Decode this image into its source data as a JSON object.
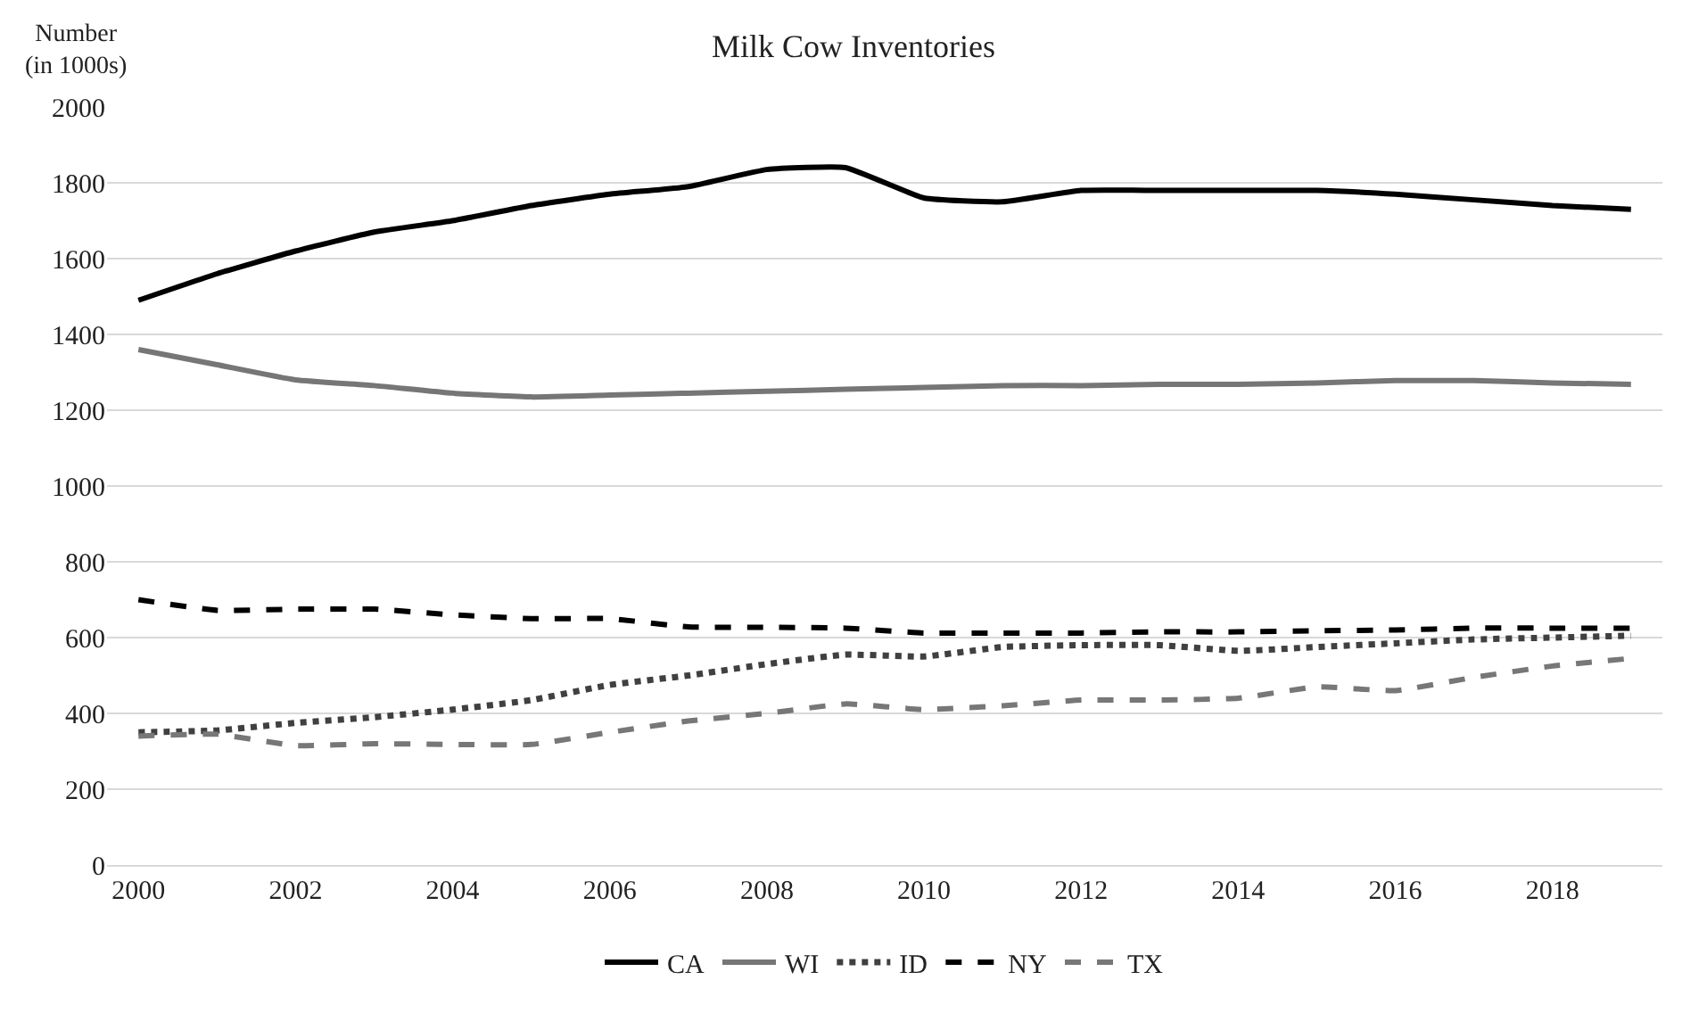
{
  "chart_data": {
    "type": "line",
    "title": "Milk Cow Inventories",
    "ylabel": "Number\n(in 1000s)",
    "x": [
      2000,
      2001,
      2002,
      2003,
      2004,
      2005,
      2006,
      2007,
      2008,
      2009,
      2010,
      2011,
      2012,
      2013,
      2014,
      2015,
      2016,
      2017,
      2018,
      2019
    ],
    "xlim": [
      1999.6,
      2019.4
    ],
    "xticks": [
      2000,
      2002,
      2004,
      2006,
      2008,
      2010,
      2012,
      2014,
      2016,
      2018
    ],
    "ylim": [
      0,
      2000
    ],
    "yticks": [
      0,
      200,
      400,
      600,
      800,
      1000,
      1200,
      1400,
      1600,
      1800,
      2000
    ],
    "grid": "y",
    "legend": "bottom",
    "marker": "none",
    "series": [
      {
        "name": "CA",
        "color": "#000000",
        "line_style": "solid",
        "values": [
          1490,
          1560,
          1620,
          1670,
          1700,
          1740,
          1770,
          1790,
          1835,
          1840,
          1760,
          1750,
          1780,
          1780,
          1780,
          1780,
          1770,
          1755,
          1740,
          1730
        ]
      },
      {
        "name": "WI",
        "color": "#767676",
        "line_style": "solid",
        "values": [
          1360,
          1320,
          1280,
          1265,
          1245,
          1235,
          1240,
          1245,
          1250,
          1255,
          1260,
          1265,
          1265,
          1268,
          1268,
          1272,
          1278,
          1278,
          1272,
          1268
        ]
      },
      {
        "name": "ID",
        "color": "#404040",
        "line_style": "dotted",
        "values": [
          350,
          355,
          375,
          390,
          410,
          435,
          475,
          500,
          530,
          555,
          550,
          575,
          580,
          580,
          565,
          575,
          585,
          595,
          600,
          605
        ]
      },
      {
        "name": "NY",
        "color": "#000000",
        "line_style": "dashed",
        "values": [
          700,
          672,
          675,
          675,
          660,
          650,
          650,
          628,
          627,
          625,
          612,
          612,
          612,
          615,
          615,
          618,
          620,
          625,
          625,
          625
        ]
      },
      {
        "name": "TX",
        "color": "#777777",
        "line_style": "dashed",
        "values": [
          340,
          345,
          315,
          320,
          318,
          318,
          350,
          380,
          400,
          425,
          410,
          420,
          435,
          435,
          440,
          470,
          460,
          495,
          525,
          545
        ]
      }
    ]
  }
}
